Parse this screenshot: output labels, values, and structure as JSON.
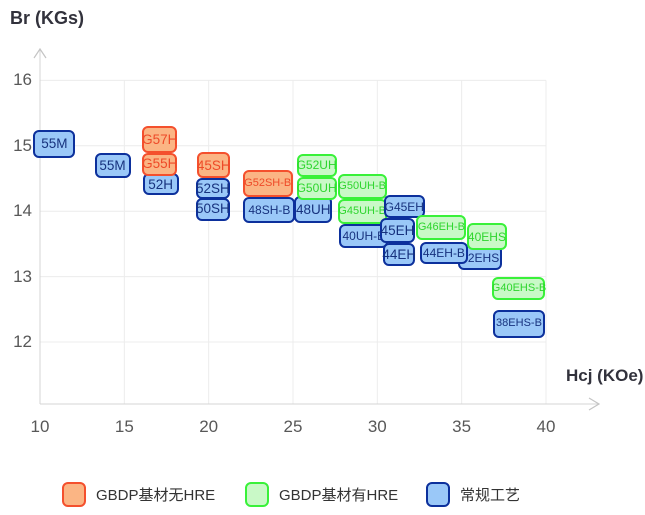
{
  "title": "Br (KGs)",
  "x_axis_title": "Hcj (KOe)",
  "legend": {
    "items": [
      {
        "key": "orange",
        "label": "GBDP基材无HRE"
      },
      {
        "key": "green",
        "label": "GBDP基材有HRE"
      },
      {
        "key": "blue",
        "label": "常规工艺"
      }
    ]
  },
  "colors": {
    "orange": {
      "fill": "#fbb584",
      "border": "#f4502d",
      "text": "#ee4a28"
    },
    "green": {
      "fill": "#c9f9c7",
      "border": "#39f139",
      "text": "#2ed52e"
    },
    "blue": {
      "fill": "#9ac8f8",
      "border": "#0c309c",
      "text": "#17327e"
    },
    "grid": "#ececec",
    "axis": "#d4d4d4",
    "arrow": "#c4c4c4",
    "tick_text": "#585858"
  },
  "chart_data": {
    "type": "scatter",
    "title": "",
    "xlabel": "Hcj (KOe)",
    "ylabel": "Br (KGs)",
    "x_ticks": [
      10,
      15,
      20,
      25,
      30,
      35,
      40
    ],
    "y_ticks": [
      16,
      15,
      14,
      13,
      12
    ],
    "xlim": [
      10,
      43.1
    ],
    "ylim": [
      11.05,
      16.55
    ],
    "grid": true,
    "legend_position": "bottom",
    "series": [
      {
        "name": "GBDP基材无HRE",
        "key": "orange",
        "points": [
          {
            "label": "G57H",
            "x": 17.1,
            "y": 15.1,
            "w": 35,
            "h": 27,
            "z": 5
          },
          {
            "label": "G55H",
            "x": 17.1,
            "y": 14.72,
            "w": 35,
            "h": 23,
            "z": 4
          },
          {
            "label": "45SH",
            "x": 20.3,
            "y": 14.7,
            "w": 33,
            "h": 26,
            "z": 8
          },
          {
            "label": "G52SH-B",
            "x": 23.5,
            "y": 14.42,
            "w": 50,
            "h": 27,
            "z": 10
          }
        ]
      },
      {
        "name": "GBDP基材有HRE",
        "key": "green",
        "points": [
          {
            "label": "G52UH",
            "x": 26.4,
            "y": 14.7,
            "w": 40,
            "h": 23,
            "z": 13
          },
          {
            "label": "G50UH",
            "x": 26.4,
            "y": 14.35,
            "w": 40,
            "h": 23,
            "z": 12
          },
          {
            "label": "G50UH-B",
            "x": 29.1,
            "y": 14.38,
            "w": 49,
            "h": 25,
            "z": 16
          },
          {
            "label": "G45UH-B",
            "x": 29.1,
            "y": 14.0,
            "w": 49,
            "h": 25,
            "z": 15
          },
          {
            "label": "G46EH-B",
            "x": 33.8,
            "y": 13.75,
            "w": 50,
            "h": 25,
            "z": 22
          },
          {
            "label": "40EHS",
            "x": 36.5,
            "y": 13.61,
            "w": 40,
            "h": 27,
            "z": 23
          },
          {
            "label": "G40EHS-B",
            "x": 38.4,
            "y": 12.82,
            "w": 53,
            "h": 23,
            "z": 24
          }
        ]
      },
      {
        "name": "常规工艺",
        "key": "blue",
        "points": [
          {
            "label": "55M",
            "x": 10.85,
            "y": 15.03,
            "w": 42,
            "h": 28,
            "z": 1
          },
          {
            "label": "55M",
            "x": 14.3,
            "y": 14.7,
            "w": 36,
            "h": 25,
            "z": 2
          },
          {
            "label": "52H",
            "x": 17.15,
            "y": 14.41,
            "w": 36,
            "h": 22,
            "z": 3
          },
          {
            "label": "52SH",
            "x": 20.25,
            "y": 14.35,
            "w": 34,
            "h": 21,
            "z": 7
          },
          {
            "label": "50SH",
            "x": 20.25,
            "y": 14.03,
            "w": 34,
            "h": 23,
            "z": 6
          },
          {
            "label": "48SH-B",
            "x": 23.6,
            "y": 14.02,
            "w": 52,
            "h": 26,
            "z": 9
          },
          {
            "label": "48UH",
            "x": 26.2,
            "y": 14.02,
            "w": 38,
            "h": 27,
            "z": 11
          },
          {
            "label": "40UH-B",
            "x": 29.2,
            "y": 13.62,
            "w": 49,
            "h": 24,
            "z": 14
          },
          {
            "label": "G45EH",
            "x": 31.6,
            "y": 14.07,
            "w": 41,
            "h": 23,
            "z": 18
          },
          {
            "label": "45EH",
            "x": 31.2,
            "y": 13.7,
            "w": 35,
            "h": 25,
            "z": 19
          },
          {
            "label": "44EH",
            "x": 31.3,
            "y": 13.34,
            "w": 32,
            "h": 23,
            "z": 17
          },
          {
            "label": "44EH-B",
            "x": 33.95,
            "y": 13.36,
            "w": 48,
            "h": 22,
            "z": 21
          },
          {
            "label": "42EHS",
            "x": 36.1,
            "y": 13.29,
            "w": 44,
            "h": 25,
            "z": 20
          },
          {
            "label": "38EHS-B",
            "x": 38.4,
            "y": 12.28,
            "w": 52,
            "h": 28,
            "z": 25
          }
        ]
      }
    ]
  }
}
